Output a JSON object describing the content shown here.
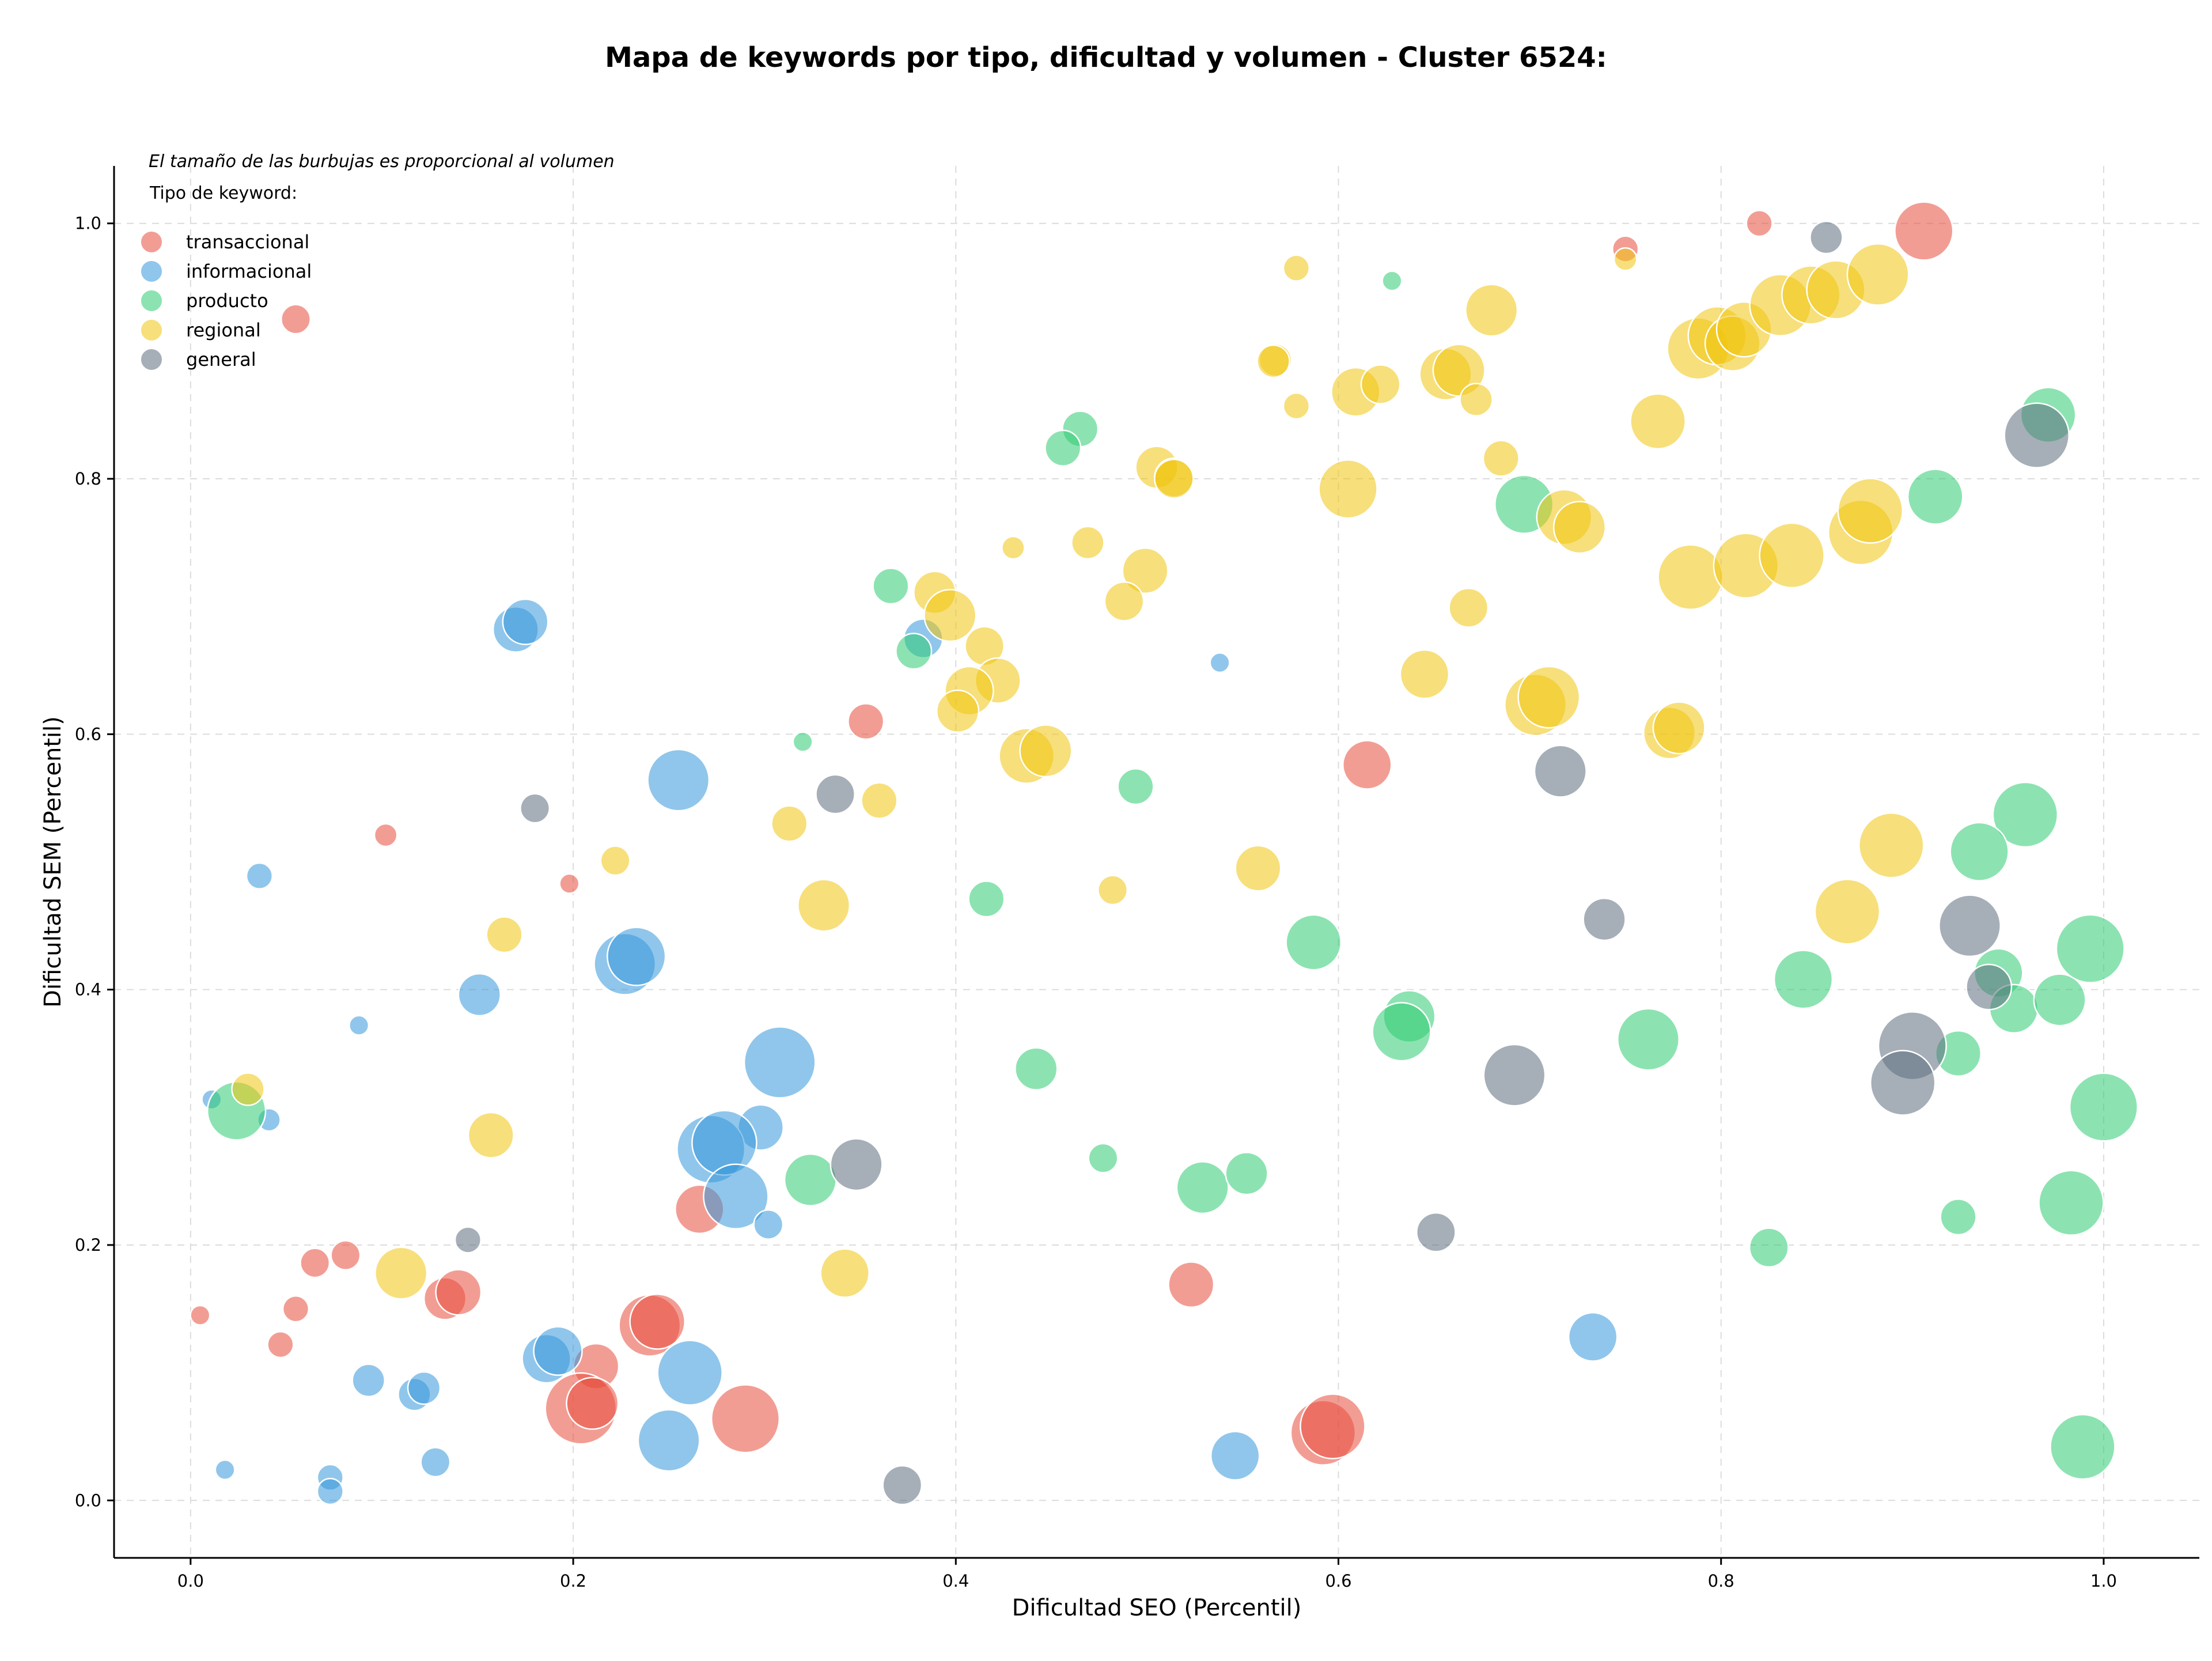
{
  "chart_data": {
    "type": "scatter",
    "title": "Mapa de keywords por tipo, dificultad y volumen - Cluster 6524:",
    "xlabel": "Dificultad SEO (Percentil)",
    "ylabel": "Dificultad SEM (Percentil)",
    "xlim": [
      -0.04,
      1.05
    ],
    "ylim": [
      -0.045,
      1.045
    ],
    "xticks": [
      "0.0",
      "0.2",
      "0.4",
      "0.6",
      "0.8",
      "1.0"
    ],
    "yticks": [
      "0.0",
      "0.2",
      "0.4",
      "0.6",
      "0.8",
      "1.0"
    ],
    "grid": true,
    "note": "El tamaño de las burbujas es proporcional al volumen",
    "legend": {
      "title": "Tipo de keyword:",
      "placement": "top-left"
    },
    "series": [
      {
        "name": "transaccional",
        "color": "#e74c3c",
        "points": [
          [
            0.906,
            0.994,
            1.8
          ],
          [
            0.82,
            1.0,
            0.8
          ],
          [
            0.75,
            0.98,
            0.8
          ],
          [
            0.055,
            0.925,
            0.9
          ],
          [
            0.353,
            0.61,
            1.1
          ],
          [
            0.615,
            0.576,
            1.5
          ],
          [
            0.102,
            0.521,
            0.7
          ],
          [
            0.198,
            0.483,
            0.6
          ],
          [
            0.005,
            0.145,
            0.6
          ],
          [
            0.047,
            0.122,
            0.8
          ],
          [
            0.055,
            0.15,
            0.8
          ],
          [
            0.065,
            0.186,
            0.9
          ],
          [
            0.081,
            0.192,
            0.9
          ],
          [
            0.133,
            0.158,
            1.3
          ],
          [
            0.14,
            0.163,
            1.4
          ],
          [
            0.212,
            0.105,
            1.4
          ],
          [
            0.204,
            0.072,
            2.2
          ],
          [
            0.21,
            0.076,
            1.6
          ],
          [
            0.24,
            0.137,
            1.9
          ],
          [
            0.244,
            0.14,
            1.7
          ],
          [
            0.266,
            0.228,
            1.5
          ],
          [
            0.29,
            0.064,
            2.1
          ],
          [
            0.523,
            0.169,
            1.4
          ],
          [
            0.592,
            0.053,
            2.0
          ],
          [
            0.597,
            0.058,
            2.0
          ]
        ]
      },
      {
        "name": "informacional",
        "color": "#3498db",
        "points": [
          [
            0.17,
            0.682,
            1.4
          ],
          [
            0.175,
            0.688,
            1.4
          ],
          [
            0.255,
            0.564,
            1.9
          ],
          [
            0.036,
            0.489,
            0.8
          ],
          [
            0.088,
            0.372,
            0.6
          ],
          [
            0.151,
            0.396,
            1.3
          ],
          [
            0.227,
            0.42,
            1.9
          ],
          [
            0.233,
            0.426,
            1.8
          ],
          [
            0.011,
            0.314,
            0.6
          ],
          [
            0.041,
            0.298,
            0.7
          ],
          [
            0.308,
            0.343,
            2.2
          ],
          [
            0.298,
            0.292,
            1.4
          ],
          [
            0.272,
            0.275,
            2.1
          ],
          [
            0.279,
            0.28,
            2.0
          ],
          [
            0.285,
            0.238,
            2.0
          ],
          [
            0.302,
            0.216,
            0.9
          ],
          [
            0.093,
            0.094,
            1.0
          ],
          [
            0.117,
            0.083,
            1.0
          ],
          [
            0.122,
            0.088,
            1.0
          ],
          [
            0.186,
            0.111,
            1.5
          ],
          [
            0.192,
            0.117,
            1.5
          ],
          [
            0.261,
            0.1,
            2.0
          ],
          [
            0.25,
            0.047,
            1.9
          ],
          [
            0.018,
            0.024,
            0.6
          ],
          [
            0.073,
            0.018,
            0.8
          ],
          [
            0.073,
            0.007,
            0.8
          ],
          [
            0.128,
            0.03,
            0.9
          ],
          [
            0.383,
            0.675,
            1.2
          ],
          [
            0.538,
            0.656,
            0.6
          ],
          [
            0.546,
            0.035,
            1.5
          ],
          [
            0.733,
            0.128,
            1.5
          ]
        ]
      },
      {
        "name": "producto",
        "color": "#2ecc71",
        "points": [
          [
            0.628,
            0.955,
            0.6
          ],
          [
            0.465,
            0.839,
            1.1
          ],
          [
            0.456,
            0.824,
            1.1
          ],
          [
            0.971,
            0.85,
            1.7
          ],
          [
            0.912,
            0.786,
            1.7
          ],
          [
            0.697,
            0.78,
            1.8
          ],
          [
            0.366,
            0.716,
            1.1
          ],
          [
            0.378,
            0.665,
            1.1
          ],
          [
            0.32,
            0.594,
            0.6
          ],
          [
            0.494,
            0.559,
            1.1
          ],
          [
            0.416,
            0.471,
            1.1
          ],
          [
            0.587,
            0.437,
            1.7
          ],
          [
            0.959,
            0.537,
            2.0
          ],
          [
            0.935,
            0.508,
            1.8
          ],
          [
            0.843,
            0.408,
            1.8
          ],
          [
            0.945,
            0.413,
            1.5
          ],
          [
            0.953,
            0.385,
            1.5
          ],
          [
            0.977,
            0.392,
            1.6
          ],
          [
            0.993,
            0.432,
            2.1
          ],
          [
            0.637,
            0.379,
            1.6
          ],
          [
            0.633,
            0.367,
            1.8
          ],
          [
            0.762,
            0.361,
            1.9
          ],
          [
            0.442,
            0.338,
            1.3
          ],
          [
            0.924,
            0.35,
            1.4
          ],
          [
            1.0,
            0.308,
            2.1
          ],
          [
            0.983,
            0.233,
            2.0
          ],
          [
            0.924,
            0.222,
            1.1
          ],
          [
            0.825,
            0.198,
            1.2
          ],
          [
            0.324,
            0.251,
            1.6
          ],
          [
            0.477,
            0.268,
            0.9
          ],
          [
            0.529,
            0.245,
            1.6
          ],
          [
            0.552,
            0.256,
            1.3
          ],
          [
            0.024,
            0.305,
            1.8
          ],
          [
            0.989,
            0.042,
            2.0
          ]
        ]
      },
      {
        "name": "regional",
        "color": "#f1c40f",
        "points": [
          [
            0.578,
            0.965,
            0.8
          ],
          [
            0.75,
            0.972,
            0.7
          ],
          [
            0.68,
            0.932,
            1.6
          ],
          [
            0.567,
            0.893,
            1.0
          ],
          [
            0.566,
            0.892,
            1.0
          ],
          [
            0.578,
            0.857,
            0.8
          ],
          [
            0.609,
            0.868,
            1.5
          ],
          [
            0.622,
            0.874,
            1.2
          ],
          [
            0.656,
            0.882,
            1.6
          ],
          [
            0.663,
            0.885,
            1.6
          ],
          [
            0.672,
            0.862,
            1.0
          ],
          [
            0.685,
            0.816,
            1.1
          ],
          [
            0.767,
            0.845,
            1.7
          ],
          [
            0.788,
            0.902,
            1.9
          ],
          [
            0.798,
            0.912,
            1.8
          ],
          [
            0.806,
            0.906,
            1.7
          ],
          [
            0.812,
            0.917,
            1.7
          ],
          [
            0.831,
            0.936,
            1.9
          ],
          [
            0.847,
            0.944,
            1.8
          ],
          [
            0.86,
            0.948,
            1.8
          ],
          [
            0.882,
            0.96,
            1.9
          ],
          [
            0.505,
            0.809,
            1.3
          ],
          [
            0.514,
            0.801,
            1.2
          ],
          [
            0.514,
            0.8,
            1.2
          ],
          [
            0.605,
            0.792,
            1.8
          ],
          [
            0.718,
            0.77,
            1.7
          ],
          [
            0.726,
            0.762,
            1.6
          ],
          [
            0.43,
            0.746,
            0.7
          ],
          [
            0.469,
            0.75,
            1.0
          ],
          [
            0.499,
            0.728,
            1.4
          ],
          [
            0.488,
            0.704,
            1.2
          ],
          [
            0.389,
            0.711,
            1.3
          ],
          [
            0.397,
            0.693,
            1.6
          ],
          [
            0.668,
            0.699,
            1.2
          ],
          [
            0.784,
            0.723,
            2.0
          ],
          [
            0.813,
            0.732,
            2.0
          ],
          [
            0.837,
            0.74,
            2.0
          ],
          [
            0.873,
            0.758,
            2.0
          ],
          [
            0.878,
            0.775,
            2.0
          ],
          [
            0.415,
            0.669,
            1.2
          ],
          [
            0.422,
            0.642,
            1.4
          ],
          [
            0.407,
            0.634,
            1.5
          ],
          [
            0.401,
            0.618,
            1.3
          ],
          [
            0.437,
            0.583,
            1.7
          ],
          [
            0.447,
            0.587,
            1.6
          ],
          [
            0.645,
            0.647,
            1.5
          ],
          [
            0.703,
            0.623,
            1.9
          ],
          [
            0.71,
            0.629,
            1.9
          ],
          [
            0.773,
            0.601,
            1.6
          ],
          [
            0.778,
            0.605,
            1.6
          ],
          [
            0.36,
            0.548,
            1.1
          ],
          [
            0.313,
            0.53,
            1.1
          ],
          [
            0.222,
            0.501,
            0.9
          ],
          [
            0.164,
            0.443,
            1.1
          ],
          [
            0.331,
            0.466,
            1.6
          ],
          [
            0.482,
            0.478,
            0.9
          ],
          [
            0.558,
            0.495,
            1.4
          ],
          [
            0.889,
            0.513,
            2.0
          ],
          [
            0.866,
            0.461,
            2.0
          ],
          [
            0.03,
            0.322,
            1.0
          ],
          [
            0.157,
            0.286,
            1.4
          ],
          [
            0.11,
            0.178,
            1.6
          ],
          [
            0.342,
            0.178,
            1.5
          ]
        ]
      },
      {
        "name": "general",
        "color": "#5d6d7e",
        "points": [
          [
            0.855,
            0.989,
            1.0
          ],
          [
            0.965,
            0.834,
            2.0
          ],
          [
            0.716,
            0.571,
            1.6
          ],
          [
            0.337,
            0.553,
            1.2
          ],
          [
            0.18,
            0.542,
            0.9
          ],
          [
            0.739,
            0.455,
            1.3
          ],
          [
            0.93,
            0.45,
            1.9
          ],
          [
            0.94,
            0.402,
            1.4
          ],
          [
            0.9,
            0.356,
            2.1
          ],
          [
            0.895,
            0.327,
            2.0
          ],
          [
            0.692,
            0.333,
            1.9
          ],
          [
            0.348,
            0.263,
            1.6
          ],
          [
            0.145,
            0.204,
            0.8
          ],
          [
            0.651,
            0.21,
            1.2
          ],
          [
            0.372,
            0.012,
            1.2
          ]
        ]
      }
    ]
  }
}
